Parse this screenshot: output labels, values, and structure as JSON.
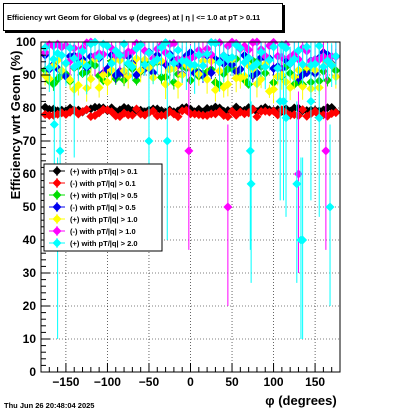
{
  "window": {
    "footer_timestamp": "Thu Jun 26 20:48:04 2025"
  },
  "chart_data": {
    "type": "scatter",
    "title": "Efficiency wrt Geom for Global vs φ (degrees) at |  η  | <= 1.0 at pT > 0.11",
    "xlabel": "φ (degrees)",
    "ylabel": "Efficiency wrt Geom (%)",
    "xlim": [
      -180,
      180
    ],
    "ylim": [
      0,
      100
    ],
    "xticks": [
      -150,
      -100,
      -50,
      0,
      50,
      100,
      150
    ],
    "xtick_labels": [
      "−150",
      "−100",
      "−50",
      "0",
      "50",
      "100",
      "150"
    ],
    "yticks": [
      0,
      10,
      20,
      30,
      40,
      50,
      60,
      70,
      80,
      90,
      100
    ],
    "grid": true,
    "legend_position": "left-center",
    "series": [
      {
        "name": "(+) with pT/|q| > 0.1",
        "color": "#000000",
        "marker": "diamond",
        "base": 79.5,
        "spread": 0.8,
        "err": 0.4
      },
      {
        "name": "(-) with pT/|q| > 0.1",
        "color": "#ff0000",
        "marker": "diamond",
        "base": 78.5,
        "spread": 1.2,
        "err": 0.5
      },
      {
        "name": "(+) with pT/|q| > 0.5",
        "color": "#00dd00",
        "marker": "diamond",
        "base": 91,
        "spread": 4,
        "err": 1.5
      },
      {
        "name": "(-) with pT/|q| > 0.5",
        "color": "#0000ee",
        "marker": "diamond",
        "base": 93,
        "spread": 4,
        "err": 1.8
      },
      {
        "name": "(+) with pT/|q| > 1.0",
        "color": "#ffff00",
        "marker": "diamond",
        "base": 90,
        "spread": 5,
        "err": 3
      },
      {
        "name": "(-) with pT/|q| > 1.0",
        "color": "#ff00ff",
        "marker": "diamond",
        "base": 97,
        "spread": 3,
        "err": 5,
        "outliers": [
          [
            -2,
            67
          ],
          [
            45,
            50
          ],
          [
            130,
            60
          ],
          [
            163,
            67
          ]
        ]
      },
      {
        "name": "(+) with pT/|q| > 2.0",
        "color": "#00ffff",
        "marker": "diamond",
        "base": 96,
        "spread": 4,
        "err": 6,
        "outliers": [
          [
            -164,
            75
          ],
          [
            -157,
            67
          ],
          [
            -160,
            40
          ],
          [
            -140,
            95
          ],
          [
            -28,
            70
          ],
          [
            72,
            67
          ],
          [
            73,
            57
          ],
          [
            108,
            82
          ],
          [
            112,
            82
          ],
          [
            128,
            57
          ],
          [
            133,
            40
          ],
          [
            135,
            40
          ],
          [
            145,
            82
          ],
          [
            155,
            77
          ],
          [
            168,
            50
          ],
          [
            115,
            77
          ],
          [
            -50,
            70
          ]
        ]
      }
    ]
  }
}
